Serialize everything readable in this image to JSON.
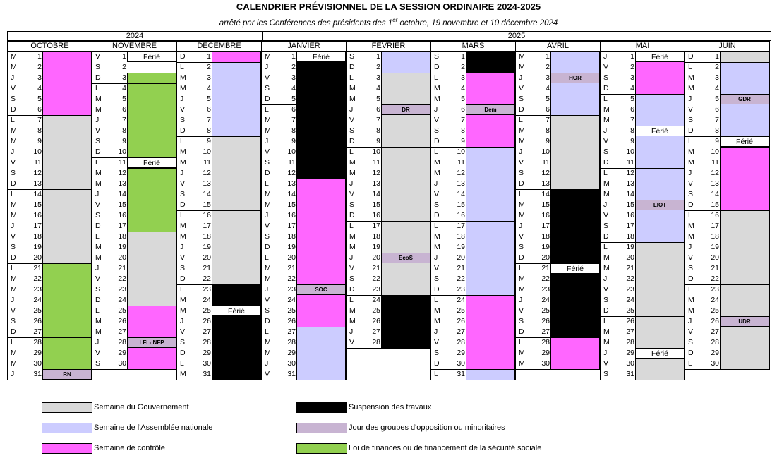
{
  "title": "CALENDRIER PRÉVISIONNEL DE LA SESSION ORDINAIRE 2024-2025",
  "subtitle_prefix": "arrêté par les Conférences des présidents des 1",
  "subtitle_sup": "er",
  "subtitle_suffix": " octobre, 19 novembre et 10 décembre 2024",
  "years": [
    "2024",
    "2025"
  ],
  "colors": {
    "gouvernement": "#d9d9d9",
    "assemblee": "#ccccff",
    "controle": "#ff66ff",
    "suspension": "#000000",
    "opposition": "#c8b4d2",
    "finances": "#92d050"
  },
  "months": [
    {
      "name": "OCTOBRE",
      "start": "M",
      "days": 31,
      "blocks": [
        [
          "ctrl",
          1,
          6
        ],
        [
          "gov",
          7,
          20
        ],
        [
          "fin",
          21,
          27
        ],
        [
          "fin",
          28,
          31
        ]
      ],
      "feries": [],
      "events": [
        {
          "day": 31,
          "label": "RN"
        }
      ]
    },
    {
      "name": "NOVEMBRE",
      "start": "V",
      "days": 30,
      "blocks": [
        [
          "fin",
          3,
          10
        ],
        [
          "fin",
          12,
          24
        ],
        [
          "gov",
          18,
          24
        ],
        [
          "ctrl",
          25,
          30
        ]
      ],
      "feries": [
        1,
        11
      ],
      "events": [
        {
          "day": 28,
          "label": "LFI - NFP"
        }
      ]
    },
    {
      "name": "DÉCEMBRE",
      "start": "D",
      "days": 31,
      "blocks": [
        [
          "ctrl",
          1,
          1
        ],
        [
          "an",
          2,
          15
        ],
        [
          "gov",
          9,
          29
        ],
        [
          "susp",
          23,
          24
        ],
        [
          "susp",
          26,
          31
        ]
      ],
      "feries": [
        25
      ],
      "events": []
    },
    {
      "name": "JANVIER",
      "start": "M",
      "days": 31,
      "blocks": [
        [
          "susp",
          1,
          12
        ],
        [
          "ctrl",
          13,
          26
        ],
        [
          "an",
          27,
          31
        ]
      ],
      "feries": [
        1
      ],
      "events": [
        {
          "day": 23,
          "label": "SOC"
        }
      ]
    },
    {
      "name": "FÉVRIER",
      "start": "S",
      "days": 28,
      "blocks": [
        [
          "an",
          1,
          2
        ],
        [
          "gov",
          3,
          23
        ],
        [
          "susp",
          24,
          28
        ]
      ],
      "feries": [],
      "events": [
        {
          "day": 6,
          "label": "DR"
        },
        {
          "day": 20,
          "label": "EcoS"
        }
      ]
    },
    {
      "name": "MARS",
      "start": "S",
      "days": 31,
      "blocks": [
        [
          "susp",
          1,
          2
        ],
        [
          "ctrl",
          3,
          9
        ],
        [
          "an",
          10,
          23
        ],
        [
          "ctrl",
          24,
          30
        ],
        [
          "an",
          31,
          31
        ]
      ],
      "feries": [],
      "events": [
        {
          "day": 6,
          "label": "Dem"
        }
      ]
    },
    {
      "name": "AVRIL",
      "start": "M",
      "days": 30,
      "blocks": [
        [
          "an",
          1,
          13
        ],
        [
          "gov",
          7,
          13
        ],
        [
          "susp",
          14,
          27
        ],
        [
          "ctrl",
          28,
          30
        ]
      ],
      "feries": [
        21
      ],
      "events": [
        {
          "day": 3,
          "label": "HOR"
        }
      ]
    },
    {
      "name": "MAI",
      "start": "J",
      "days": 31,
      "blocks": [
        [
          "ctrl",
          1,
          4
        ],
        [
          "an",
          5,
          18
        ],
        [
          "gov",
          19,
          31
        ]
      ],
      "feries": [
        1,
        8,
        29
      ],
      "events": [
        {
          "day": 15,
          "label": "LIOT"
        }
      ]
    },
    {
      "name": "JUIN",
      "start": "D",
      "days": 30,
      "blocks": [
        [
          "gov",
          1,
          1
        ],
        [
          "an",
          2,
          8
        ],
        [
          "ctrl",
          10,
          15
        ],
        [
          "gov",
          16,
          30
        ]
      ],
      "feries": [
        9
      ],
      "events": [
        {
          "day": 5,
          "label": "GDR"
        },
        {
          "day": 26,
          "label": "UDR"
        }
      ]
    }
  ],
  "ferie_label": "Férié",
  "legend": [
    {
      "cls": "gov",
      "label": "Semaine du Gouvernement"
    },
    {
      "cls": "an",
      "label": "Semaine de l'Assemblée nationale"
    },
    {
      "cls": "ctrl",
      "label": "Semaine de contrôle"
    },
    {
      "cls": "susp",
      "label": "Suspension des travaux"
    },
    {
      "cls": "opp",
      "label": "Jour des groupes d'opposition ou minoritaires"
    },
    {
      "cls": "fin",
      "label": "Loi de finances ou de financement de la sécurité sociale"
    }
  ]
}
